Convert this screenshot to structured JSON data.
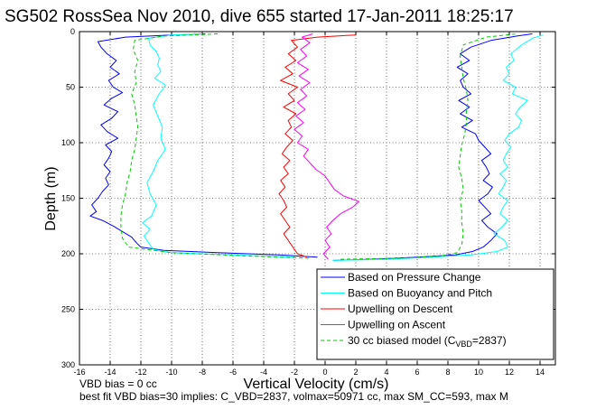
{
  "chart_data": {
    "type": "line",
    "title": "SG502 RossSea Nov 2010, dive 655 started 17-Jan-2011 18:25:17",
    "xlabel": "Vertical Velocity (cm/s)",
    "ylabel": "Depth (m)",
    "xlim": [
      -16,
      15
    ],
    "ylim": [
      300,
      0
    ],
    "y_reversed": true,
    "grid": true,
    "xticks": [
      "-16",
      "-14",
      "-12",
      "-10",
      "-8",
      "-6",
      "-4",
      "-2",
      "0",
      "2",
      "4",
      "6",
      "8",
      "10",
      "12",
      "14"
    ],
    "yticks": [
      "0",
      "50",
      "100",
      "150",
      "200",
      "250",
      "300"
    ],
    "legend_position": "bottom-right",
    "series": [
      {
        "name": "Based on Pressure Change",
        "color": "#0000ff",
        "style": "solid",
        "descent": [
          [
            -7.8,
            2
          ],
          [
            -10,
            3
          ],
          [
            -13,
            5
          ],
          [
            -14.8,
            9
          ],
          [
            -14.6,
            14
          ],
          [
            -14.2,
            20
          ],
          [
            -13.6,
            26
          ],
          [
            -14,
            32
          ],
          [
            -13.4,
            38
          ],
          [
            -14.1,
            44
          ],
          [
            -13.8,
            50
          ],
          [
            -13.2,
            55
          ],
          [
            -13.9,
            60
          ],
          [
            -14.4,
            66
          ],
          [
            -13.5,
            72
          ],
          [
            -13.9,
            78
          ],
          [
            -14.6,
            84
          ],
          [
            -14.2,
            90
          ],
          [
            -13.5,
            96
          ],
          [
            -14.3,
            102
          ],
          [
            -13.9,
            108
          ],
          [
            -14.1,
            114
          ],
          [
            -14.4,
            120
          ],
          [
            -14.0,
            126
          ],
          [
            -14.3,
            132
          ],
          [
            -14.1,
            138
          ],
          [
            -14.5,
            144
          ],
          [
            -14.8,
            150
          ],
          [
            -15.2,
            156
          ],
          [
            -14.9,
            162
          ],
          [
            -15.3,
            166
          ],
          [
            -14.5,
            170
          ],
          [
            -13.8,
            175
          ],
          [
            -13.2,
            180
          ],
          [
            -12.6,
            185
          ],
          [
            -12.3,
            190
          ],
          [
            -12.0,
            194
          ],
          [
            -10.5,
            197
          ],
          [
            -7,
            199
          ],
          [
            -3,
            201
          ],
          [
            -0.5,
            203
          ]
        ],
        "ascent": [
          [
            0.5,
            206
          ],
          [
            3,
            205
          ],
          [
            6,
            203
          ],
          [
            8.5,
            201
          ],
          [
            9.6,
            198
          ],
          [
            10.3,
            194
          ],
          [
            10.8,
            188
          ],
          [
            11.2,
            182
          ],
          [
            10.6,
            176
          ],
          [
            10.2,
            170
          ],
          [
            10.8,
            164
          ],
          [
            10.4,
            158
          ],
          [
            10.0,
            152
          ],
          [
            10.6,
            146
          ],
          [
            10.9,
            140
          ],
          [
            10.3,
            134
          ],
          [
            10.7,
            128
          ],
          [
            10.5,
            122
          ],
          [
            10.2,
            116
          ],
          [
            10.8,
            110
          ],
          [
            10.4,
            104
          ],
          [
            10.0,
            98
          ],
          [
            9.8,
            92
          ],
          [
            8.9,
            86
          ],
          [
            9.6,
            80
          ],
          [
            8.8,
            74
          ],
          [
            9.4,
            68
          ],
          [
            8.7,
            62
          ],
          [
            9.5,
            56
          ],
          [
            9.0,
            50
          ],
          [
            8.8,
            44
          ],
          [
            9.3,
            38
          ],
          [
            8.6,
            32
          ],
          [
            9.4,
            26
          ],
          [
            8.8,
            20
          ],
          [
            9.5,
            14
          ],
          [
            10.8,
            8
          ],
          [
            12.5,
            4
          ],
          [
            13.5,
            2
          ]
        ]
      },
      {
        "name": "Based on Buoyancy and Pitch",
        "color": "#00ffff",
        "style": "solid",
        "descent": [
          [
            -8,
            2
          ],
          [
            -10,
            3
          ],
          [
            -11.5,
            6
          ],
          [
            -11.4,
            12
          ],
          [
            -11.0,
            18
          ],
          [
            -10.8,
            24
          ],
          [
            -10.9,
            30
          ],
          [
            -10.7,
            36
          ],
          [
            -11.1,
            42
          ],
          [
            -10.4,
            48
          ],
          [
            -10.8,
            56
          ],
          [
            -11.2,
            66
          ],
          [
            -10.9,
            76
          ],
          [
            -10.6,
            86
          ],
          [
            -10.7,
            96
          ],
          [
            -10.4,
            106
          ],
          [
            -10.9,
            116
          ],
          [
            -11.2,
            126
          ],
          [
            -11.6,
            136
          ],
          [
            -11.4,
            146
          ],
          [
            -11.0,
            156
          ],
          [
            -11.3,
            166
          ],
          [
            -11.9,
            172
          ],
          [
            -11.4,
            178
          ],
          [
            -11.8,
            184
          ],
          [
            -11.5,
            190
          ],
          [
            -11.2,
            196
          ],
          [
            -10,
            199
          ],
          [
            -6,
            201
          ],
          [
            -2,
            203
          ]
        ],
        "ascent": [
          [
            0.5,
            206
          ],
          [
            4,
            205
          ],
          [
            7,
            203
          ],
          [
            9.5,
            201
          ],
          [
            11.2,
            198
          ],
          [
            11.9,
            194
          ],
          [
            11.7,
            188
          ],
          [
            11.0,
            182
          ],
          [
            11.5,
            176
          ],
          [
            11.9,
            170
          ],
          [
            11.4,
            164
          ],
          [
            11.6,
            158
          ],
          [
            11.9,
            152
          ],
          [
            11.3,
            146
          ],
          [
            11.6,
            140
          ],
          [
            11.8,
            134
          ],
          [
            11.4,
            128
          ],
          [
            11.9,
            122
          ],
          [
            11.6,
            116
          ],
          [
            11.8,
            110
          ],
          [
            12.1,
            104
          ],
          [
            11.7,
            98
          ],
          [
            12.0,
            92
          ],
          [
            12.6,
            86
          ],
          [
            12.8,
            80
          ],
          [
            12.4,
            74
          ],
          [
            12.7,
            68
          ],
          [
            13.2,
            62
          ],
          [
            12.2,
            56
          ],
          [
            12.4,
            50
          ],
          [
            11.6,
            44
          ],
          [
            12.0,
            38
          ],
          [
            11.8,
            32
          ],
          [
            12.3,
            26
          ],
          [
            12.1,
            20
          ],
          [
            12.8,
            12
          ],
          [
            13.5,
            6
          ],
          [
            14.2,
            3
          ]
        ]
      },
      {
        "name": "Upwelling on Descent",
        "color": "#ff0000",
        "style": "solid",
        "descent": [
          [
            2,
            3
          ],
          [
            -0.5,
            5
          ],
          [
            -2.2,
            8
          ],
          [
            -1.8,
            14
          ],
          [
            -2.4,
            20
          ],
          [
            -1.9,
            26
          ],
          [
            -2.6,
            32
          ],
          [
            -2.1,
            38
          ],
          [
            -2.9,
            44
          ],
          [
            -1.8,
            50
          ],
          [
            -2.4,
            56
          ],
          [
            -2.0,
            62
          ],
          [
            -2.7,
            68
          ],
          [
            -1.9,
            74
          ],
          [
            -2.4,
            80
          ],
          [
            -2.2,
            86
          ],
          [
            -2.6,
            92
          ],
          [
            -2.1,
            98
          ],
          [
            -2.5,
            104
          ],
          [
            -2.8,
            110
          ],
          [
            -2.3,
            116
          ],
          [
            -2.7,
            122
          ],
          [
            -2.4,
            128
          ],
          [
            -2.9,
            134
          ],
          [
            -2.6,
            140
          ],
          [
            -3.0,
            146
          ],
          [
            -2.7,
            152
          ],
          [
            -2.5,
            158
          ],
          [
            -2.9,
            164
          ],
          [
            -2.6,
            170
          ],
          [
            -2.3,
            176
          ],
          [
            -2.7,
            182
          ],
          [
            -2.4,
            188
          ],
          [
            -2.1,
            194
          ],
          [
            -1.8,
            200
          ],
          [
            -1.2,
            203
          ]
        ]
      },
      {
        "name": "Upwelling on Ascent",
        "color": "#ff00ff",
        "style": "solid",
        "ascent": [
          [
            0.2,
            205
          ],
          [
            -0.1,
            200
          ],
          [
            0.3,
            194
          ],
          [
            0.0,
            188
          ],
          [
            0.4,
            182
          ],
          [
            0.1,
            176
          ],
          [
            0.5,
            170
          ],
          [
            1.0,
            164
          ],
          [
            1.8,
            158
          ],
          [
            2.2,
            153
          ],
          [
            1.2,
            148
          ],
          [
            0.6,
            142
          ],
          [
            0.3,
            136
          ],
          [
            0.0,
            130
          ],
          [
            -0.6,
            124
          ],
          [
            -1.0,
            118
          ],
          [
            -1.4,
            112
          ],
          [
            -1.1,
            106
          ],
          [
            -1.8,
            100
          ],
          [
            -1.5,
            94
          ],
          [
            -2.0,
            88
          ],
          [
            -1.4,
            82
          ],
          [
            -1.9,
            76
          ],
          [
            -1.3,
            70
          ],
          [
            -1.8,
            64
          ],
          [
            -1.2,
            58
          ],
          [
            -1.6,
            52
          ],
          [
            -1.0,
            46
          ],
          [
            -1.7,
            40
          ],
          [
            -1.1,
            34
          ],
          [
            -1.8,
            28
          ],
          [
            -1.2,
            22
          ],
          [
            -1.6,
            16
          ],
          [
            -1.0,
            10
          ],
          [
            -1.5,
            5
          ],
          [
            -0.8,
            2
          ]
        ]
      },
      {
        "name": "30 cc biased model (C",
        "name_subscript": "VBD",
        "name_suffix": "=2837)",
        "color": "#00cc00",
        "style": "dashed",
        "descent": [
          [
            -7,
            2
          ],
          [
            -10.5,
            4
          ],
          [
            -12.4,
            8
          ],
          [
            -12.5,
            16
          ],
          [
            -12.2,
            26
          ],
          [
            -12.4,
            36
          ],
          [
            -12.3,
            46
          ],
          [
            -12.6,
            56
          ],
          [
            -12.4,
            66
          ],
          [
            -12.3,
            76
          ],
          [
            -12.2,
            86
          ],
          [
            -12.3,
            96
          ],
          [
            -12.4,
            106
          ],
          [
            -12.6,
            116
          ],
          [
            -12.7,
            126
          ],
          [
            -12.9,
            136
          ],
          [
            -13.0,
            146
          ],
          [
            -13.2,
            156
          ],
          [
            -13.3,
            166
          ],
          [
            -13.3,
            176
          ],
          [
            -13.2,
            186
          ],
          [
            -12.8,
            194
          ],
          [
            -10,
            199
          ],
          [
            -5,
            202
          ],
          [
            -1,
            204
          ]
        ],
        "ascent": [
          [
            1,
            205
          ],
          [
            5,
            204
          ],
          [
            7.5,
            202
          ],
          [
            8.6,
            199
          ],
          [
            8.9,
            192
          ],
          [
            9.0,
            182
          ],
          [
            8.9,
            172
          ],
          [
            8.9,
            162
          ],
          [
            8.8,
            152
          ],
          [
            9.0,
            142
          ],
          [
            8.9,
            132
          ],
          [
            8.7,
            122
          ],
          [
            8.8,
            112
          ],
          [
            8.9,
            102
          ],
          [
            9.1,
            92
          ],
          [
            9.2,
            82
          ],
          [
            9.2,
            72
          ],
          [
            9.3,
            62
          ],
          [
            9.2,
            52
          ],
          [
            9.0,
            42
          ],
          [
            8.9,
            32
          ],
          [
            8.8,
            22
          ],
          [
            9.0,
            12
          ],
          [
            10.5,
            5
          ],
          [
            12.5,
            2
          ]
        ]
      }
    ]
  },
  "annotations": {
    "line1": "VBD bias = 0 cc",
    "line2": "best fit VBD bias=30 implies: C_VBD=2837, volmax=50971 cc, max SM_CC=593, max M"
  }
}
